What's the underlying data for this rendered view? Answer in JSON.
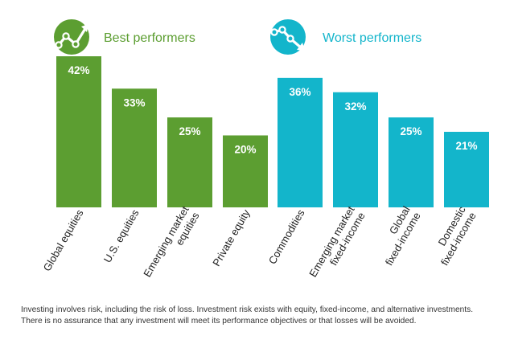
{
  "chart_data": {
    "type": "bar",
    "title": "",
    "xlabel": "",
    "ylabel": "",
    "ylim": [
      0,
      45
    ],
    "grid": false,
    "groups": [
      {
        "name": "Best performers",
        "color": "#5c9e31",
        "icon": "trend-up-icon",
        "categories": [
          [
            "Global equities"
          ],
          [
            "U.S. equities"
          ],
          [
            "Emerging market",
            "equities"
          ],
          [
            "Private equity"
          ]
        ],
        "values": [
          42,
          33,
          25,
          20
        ],
        "labels": [
          "42%",
          "33%",
          "25%",
          "20%"
        ]
      },
      {
        "name": "Worst performers",
        "color": "#13b5cb",
        "icon": "trend-down-icon",
        "categories": [
          [
            "Commodities"
          ],
          [
            "Emerging market",
            "fixed-income"
          ],
          [
            "Global",
            "fixed-income"
          ],
          [
            "Domestic",
            "fixed-income"
          ]
        ],
        "values": [
          36,
          32,
          25,
          21
        ],
        "labels": [
          "36%",
          "32%",
          "25%",
          "21%"
        ]
      }
    ]
  },
  "footnote": {
    "line1": "Investing involves risk, including the risk of loss. Investment risk exists with equity, fixed-income, and alternative investments.",
    "line2": "There is no assurance that any investment will meet its  performance objectives or that losses will be avoided."
  }
}
